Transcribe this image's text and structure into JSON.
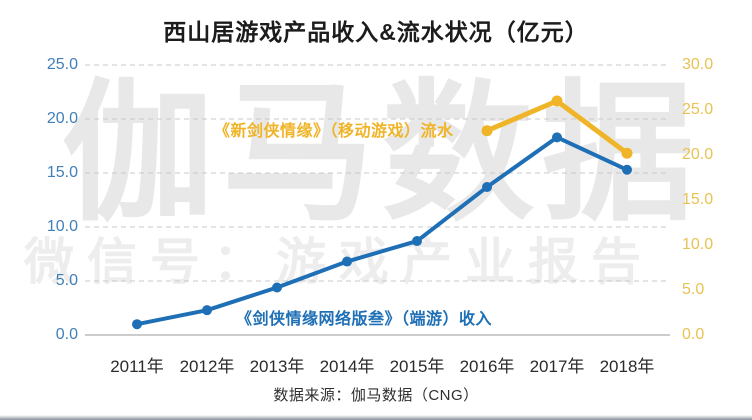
{
  "title": "西山居游戏产品收入&流水状况（亿元）",
  "source_note": "数据来源：伽马数据（CNG）",
  "watermark": {
    "brand": "伽马数据",
    "wechat": "微信号：游戏产业报告"
  },
  "colors": {
    "revenue_blue": "#1e6fb5",
    "flow_yellow": "#f0b429",
    "left_axis_label": "#4080b8",
    "right_axis_label": "#e8c252",
    "grid_line": "#c9c9c9",
    "axis_line": "#aeaeae",
    "x_label": "#2b2b2b"
  },
  "annotations": {
    "mobile_flow_label": "《新剑侠情缘》（移动游戏）流水",
    "pc_revenue_label": "《剑侠情缘网络版叁》（端游）收入"
  },
  "chart_data": {
    "type": "line",
    "title": "西山居游戏产品收入&流水状况（亿元）",
    "categories": [
      "2011年",
      "2012年",
      "2013年",
      "2014年",
      "2015年",
      "2016年",
      "2017年",
      "2018年"
    ],
    "series": [
      {
        "name": "《剑侠情缘网络版叁》（端游）收入",
        "axis": "left",
        "color": "#1e6fb5",
        "values": [
          1.0,
          2.3,
          4.4,
          6.8,
          8.7,
          13.7,
          18.3,
          15.3
        ]
      },
      {
        "name": "《新剑侠情缘》（移动游戏）流水",
        "axis": "right",
        "color": "#f0b429",
        "values": [
          null,
          null,
          null,
          null,
          null,
          22.7,
          26.0,
          20.2
        ]
      }
    ],
    "left_axis": {
      "min": 0,
      "max": 25,
      "ticks": [
        "25.0",
        "20.0",
        "15.0",
        "10.0",
        "5.0",
        "0.0"
      ]
    },
    "right_axis": {
      "min": 0,
      "max": 30,
      "ticks": [
        "30.0",
        "25.0",
        "20.0",
        "15.0",
        "10.0",
        "5.0",
        "0.0"
      ]
    },
    "grid": "horizontal dashed",
    "legend_position": "inline annotations on plot"
  }
}
